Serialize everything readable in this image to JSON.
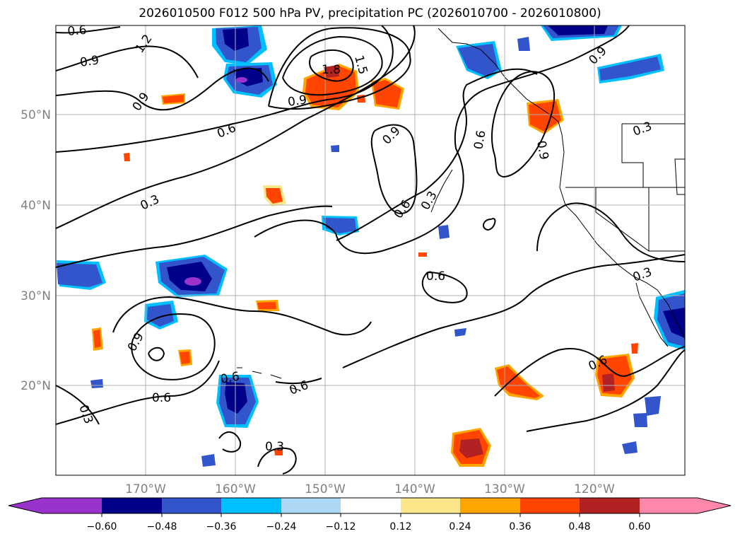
{
  "title": "2026010500 F012 500 hPa PV, precipitation PC (2026010700 - 2026010800)",
  "lat_labels": [
    "50°N",
    "40°N",
    "30°N",
    "20°N"
  ],
  "lon_labels": [
    "170°W",
    "160°W",
    "150°W",
    "140°W",
    "130°W",
    "120°W"
  ],
  "colorbar": {
    "colors": [
      "#9933cc",
      "#00008b",
      "#3355cc",
      "#00bfff",
      "#add8f5",
      "#ffffff",
      "#fde68a",
      "#ffa500",
      "#ff4500",
      "#b22222",
      "#ff88aa"
    ],
    "tick_labels": [
      "−0.60",
      "−0.48",
      "−0.36",
      "−0.24",
      "−0.12",
      "0.12",
      "0.24",
      "0.36",
      "0.48",
      "0.60"
    ]
  },
  "contour_labels": [
    "0.6",
    "0.9",
    "1.2",
    "1.5",
    "1.8",
    "0.9",
    "0.9",
    "0.6",
    "0.6",
    "0.9",
    "0.6",
    "0.9",
    "0.9",
    "0.3",
    "0.6",
    "0.3",
    "0.6",
    "0.3",
    "0.6",
    "0.9",
    "0.6",
    "0.6",
    "0.3",
    "0.3",
    "0.3"
  ]
}
